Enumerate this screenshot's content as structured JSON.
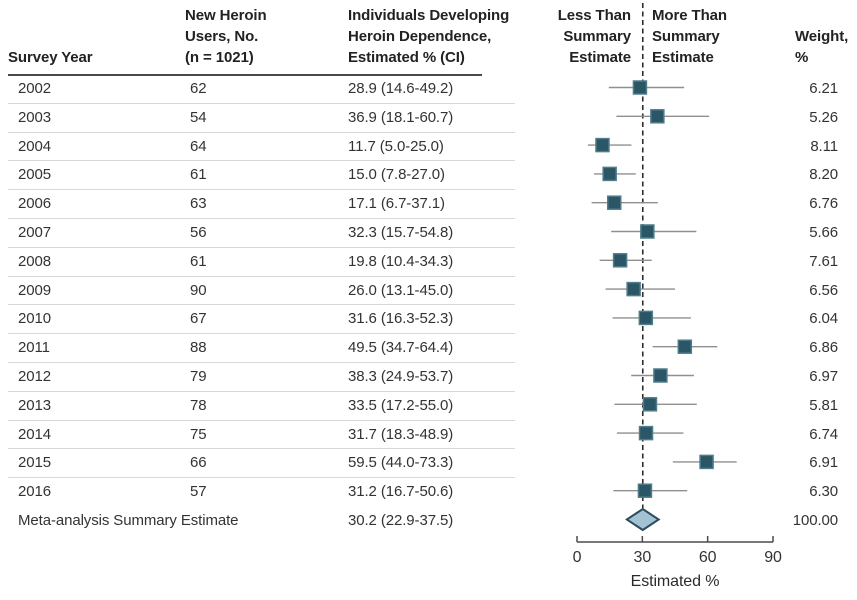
{
  "table": {
    "headers": {
      "survey_year": "Survey Year",
      "users": [
        "New Heroin",
        "Users, No.",
        "(n = 1021)"
      ],
      "estimate_ci": [
        "Individuals Developing",
        "Heroin Dependence,",
        "Estimated % (CI)"
      ],
      "less_than": [
        "Less Than",
        "Summary",
        "Estimate"
      ],
      "more_than": [
        "More Than",
        "Summary",
        "Estimate"
      ],
      "weight": [
        "Weight,",
        "%"
      ]
    },
    "rows": [
      {
        "year": "2002",
        "users": "62",
        "estimate_ci": "28.9 (14.6-49.2)",
        "weight": "6.21"
      },
      {
        "year": "2003",
        "users": "54",
        "estimate_ci": "36.9 (18.1-60.7)",
        "weight": "5.26"
      },
      {
        "year": "2004",
        "users": "64",
        "estimate_ci": "11.7 (5.0-25.0)",
        "weight": "8.11"
      },
      {
        "year": "2005",
        "users": "61",
        "estimate_ci": "15.0 (7.8-27.0)",
        "weight": "8.20"
      },
      {
        "year": "2006",
        "users": "63",
        "estimate_ci": "17.1 (6.7-37.1)",
        "weight": "6.76"
      },
      {
        "year": "2007",
        "users": "56",
        "estimate_ci": "32.3 (15.7-54.8)",
        "weight": "5.66"
      },
      {
        "year": "2008",
        "users": "61",
        "estimate_ci": "19.8 (10.4-34.3)",
        "weight": "7.61"
      },
      {
        "year": "2009",
        "users": "90",
        "estimate_ci": "26.0 (13.1-45.0)",
        "weight": "6.56"
      },
      {
        "year": "2010",
        "users": "67",
        "estimate_ci": "31.6 (16.3-52.3)",
        "weight": "6.04"
      },
      {
        "year": "2011",
        "users": "88",
        "estimate_ci": "49.5 (34.7-64.4)",
        "weight": "6.86"
      },
      {
        "year": "2012",
        "users": "79",
        "estimate_ci": "38.3 (24.9-53.7)",
        "weight": "6.97"
      },
      {
        "year": "2013",
        "users": "78",
        "estimate_ci": "33.5 (17.2-55.0)",
        "weight": "5.81"
      },
      {
        "year": "2014",
        "users": "75",
        "estimate_ci": "31.7 (18.3-48.9)",
        "weight": "6.74"
      },
      {
        "year": "2015",
        "users": "66",
        "estimate_ci": "59.5 (44.0-73.3)",
        "weight": "6.91"
      },
      {
        "year": "2016",
        "users": "57",
        "estimate_ci": "31.2 (16.7-50.6)",
        "weight": "6.30"
      }
    ],
    "summary_row": {
      "label": "Meta-analysis Summary Estimate",
      "estimate_ci": "30.2 (22.9-37.5)",
      "weight": "100.00"
    }
  },
  "chart_data": {
    "type": "forest",
    "title": "",
    "xlabel": "Estimated %",
    "xlim": [
      0,
      90
    ],
    "xticks": [
      0,
      30,
      60,
      90
    ],
    "reference_line": 30.2,
    "studies": [
      {
        "label": "2002",
        "estimate": 28.9,
        "ci_low": 14.6,
        "ci_high": 49.2,
        "weight": 6.21
      },
      {
        "label": "2003",
        "estimate": 36.9,
        "ci_low": 18.1,
        "ci_high": 60.7,
        "weight": 5.26
      },
      {
        "label": "2004",
        "estimate": 11.7,
        "ci_low": 5.0,
        "ci_high": 25.0,
        "weight": 8.11
      },
      {
        "label": "2005",
        "estimate": 15.0,
        "ci_low": 7.8,
        "ci_high": 27.0,
        "weight": 8.2
      },
      {
        "label": "2006",
        "estimate": 17.1,
        "ci_low": 6.7,
        "ci_high": 37.1,
        "weight": 6.76
      },
      {
        "label": "2007",
        "estimate": 32.3,
        "ci_low": 15.7,
        "ci_high": 54.8,
        "weight": 5.66
      },
      {
        "label": "2008",
        "estimate": 19.8,
        "ci_low": 10.4,
        "ci_high": 34.3,
        "weight": 7.61
      },
      {
        "label": "2009",
        "estimate": 26.0,
        "ci_low": 13.1,
        "ci_high": 45.0,
        "weight": 6.56
      },
      {
        "label": "2010",
        "estimate": 31.6,
        "ci_low": 16.3,
        "ci_high": 52.3,
        "weight": 6.04
      },
      {
        "label": "2011",
        "estimate": 49.5,
        "ci_low": 34.7,
        "ci_high": 64.4,
        "weight": 6.86
      },
      {
        "label": "2012",
        "estimate": 38.3,
        "ci_low": 24.9,
        "ci_high": 53.7,
        "weight": 6.97
      },
      {
        "label": "2013",
        "estimate": 33.5,
        "ci_low": 17.2,
        "ci_high": 55.0,
        "weight": 5.81
      },
      {
        "label": "2014",
        "estimate": 31.7,
        "ci_low": 18.3,
        "ci_high": 48.9,
        "weight": 6.74
      },
      {
        "label": "2015",
        "estimate": 59.5,
        "ci_low": 44.0,
        "ci_high": 73.3,
        "weight": 6.91
      },
      {
        "label": "2016",
        "estimate": 31.2,
        "ci_low": 16.7,
        "ci_high": 50.6,
        "weight": 6.3
      }
    ],
    "summary": {
      "label": "Meta-analysis Summary Estimate",
      "estimate": 30.2,
      "ci_low": 22.9,
      "ci_high": 37.5,
      "weight": 100.0
    },
    "colors": {
      "marker_fill": "#2a5666",
      "marker_stroke": "#4f7d8b",
      "ci_line": "#8f8f8f",
      "diamond_fill": "#a3c2d4",
      "diamond_stroke": "#2c4d5c",
      "dashed_line": "#2d2d2d",
      "axis": "#4b4b4b"
    }
  }
}
